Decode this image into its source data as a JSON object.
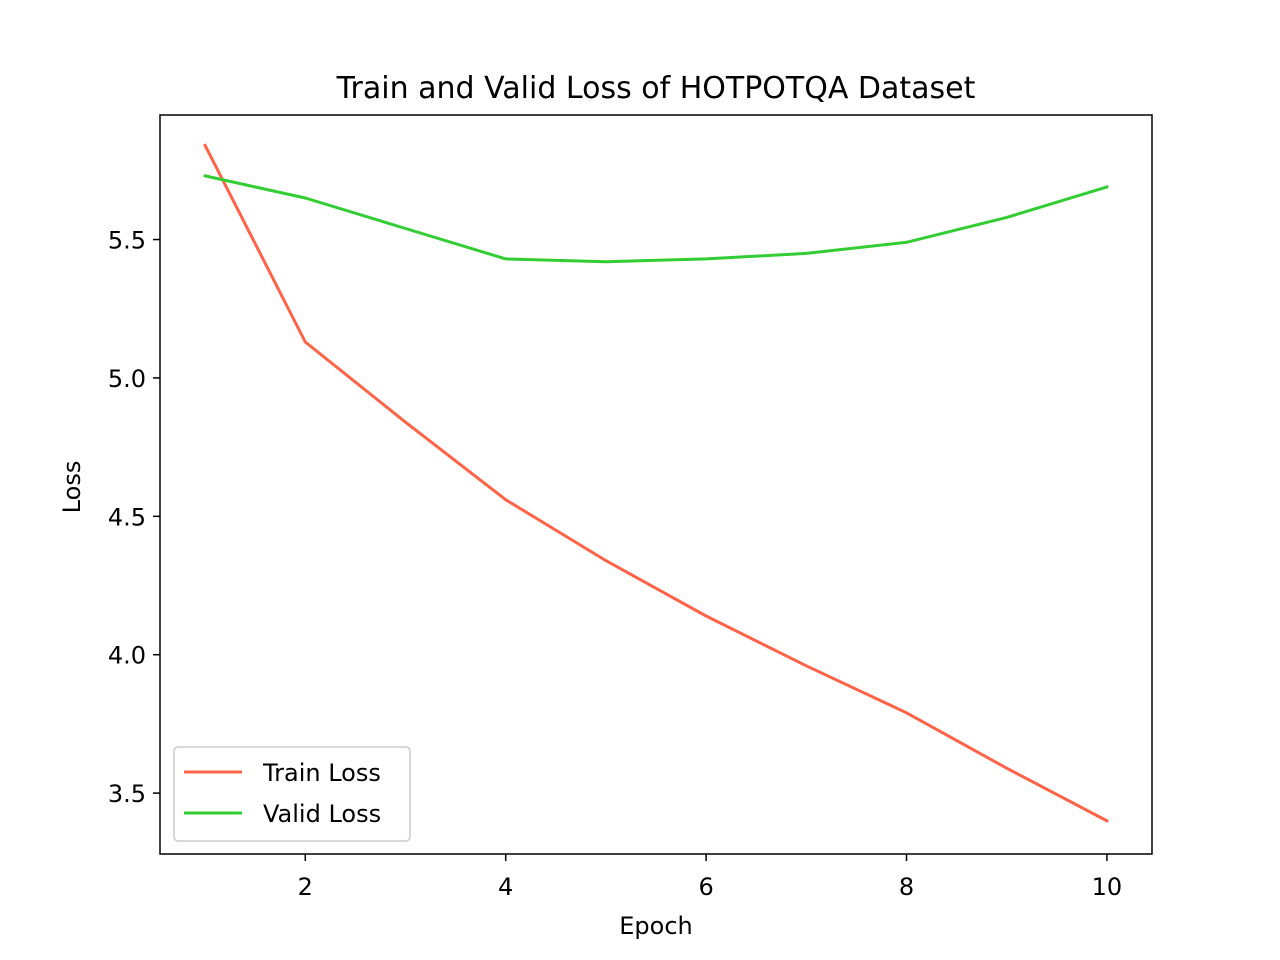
{
  "chart_data": {
    "type": "line",
    "title": "Train and Valid Loss of HOTPOTQA Dataset",
    "xlabel": "Epoch",
    "ylabel": "Loss",
    "x": [
      1,
      2,
      3,
      4,
      5,
      6,
      7,
      8,
      9,
      10
    ],
    "xlim": [
      0.55,
      10.45
    ],
    "ylim": [
      3.28,
      5.95
    ],
    "xticks": [
      2,
      4,
      6,
      8,
      10
    ],
    "xtick_labels": [
      "2",
      "4",
      "6",
      "8",
      "10"
    ],
    "yticks": [
      3.5,
      4.0,
      4.5,
      5.0,
      5.5
    ],
    "ytick_labels": [
      "3.5",
      "4.0",
      "4.5",
      "5.0",
      "5.5"
    ],
    "grid": false,
    "legend_position": "lower-left",
    "series": [
      {
        "name": "Train Loss",
        "color": "#ff6347",
        "values": [
          5.84,
          5.13,
          4.84,
          4.56,
          4.34,
          4.14,
          3.96,
          3.79,
          3.59,
          3.4
        ]
      },
      {
        "name": "Valid Loss",
        "color": "#32cd32",
        "values": [
          5.73,
          5.65,
          5.54,
          5.43,
          5.42,
          5.43,
          5.45,
          5.49,
          5.58,
          5.69
        ]
      }
    ]
  }
}
